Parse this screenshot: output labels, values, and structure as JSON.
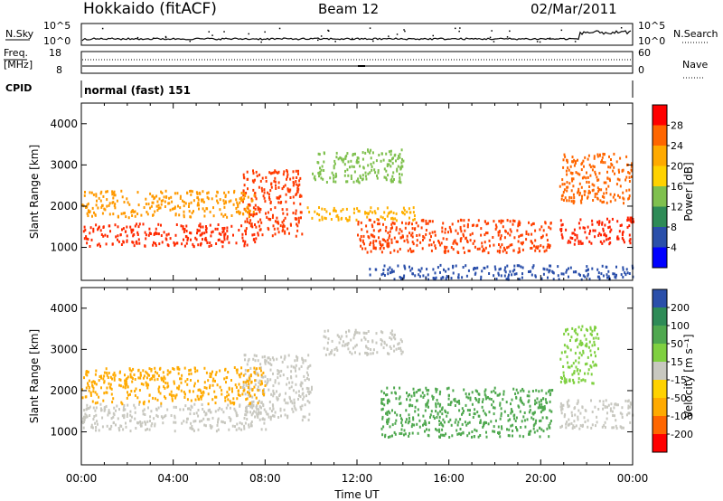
{
  "header": {
    "station": "Hokkaido (fitACF)",
    "beam": "Beam 12",
    "date": "02/Mar/2011"
  },
  "noise_panel": {
    "left_label": "N.Sky",
    "right_label": "N.Search",
    "ticks_left": [
      "10^5",
      "10^0"
    ],
    "ticks_right": [
      "10^5",
      "10^0"
    ]
  },
  "freq_panel": {
    "left_label_line1": "Freq.",
    "left_label_line2": "[MHz]",
    "ticks_left": [
      "18",
      "8"
    ],
    "ticks_right": [
      "60",
      "0"
    ],
    "right_label": "Nave"
  },
  "cpid_panel": {
    "left_label": "CPID",
    "mode_text": "normal (fast) 151"
  },
  "chart_data": [
    {
      "type": "heatmap",
      "title": "",
      "xlabel": "",
      "ylabel": "Slant Range [km]",
      "xlim": [
        0,
        24
      ],
      "ylim": [
        200,
        4500
      ],
      "x_ticks": [
        "00:00",
        "04:00",
        "08:00",
        "12:00",
        "16:00",
        "20:00",
        "00:00"
      ],
      "y_ticks": [
        1000,
        2000,
        3000,
        4000
      ],
      "colorbar": {
        "label": "Power [dB]",
        "ticks": [
          "28",
          "24",
          "20",
          "16",
          "12",
          "8",
          "4"
        ],
        "colors": [
          "#ff0000",
          "#ff6600",
          "#ffaa00",
          "#ffd200",
          "#7fc04e",
          "#2e8b57",
          "#2a4faa",
          "#0000ff"
        ]
      },
      "scatter_bands": [
        {
          "t0": 0.0,
          "t1": 7.7,
          "r0": 1050,
          "r1": 1600,
          "color": "#ff2a00"
        },
        {
          "t0": 7.0,
          "t1": 9.6,
          "r0": 1300,
          "r1": 2900,
          "color": "#ff3a00"
        },
        {
          "t0": 0.0,
          "t1": 7.5,
          "r0": 1750,
          "r1": 2400,
          "color": "#ff9900"
        },
        {
          "t0": 9.8,
          "t1": 14.5,
          "r0": 1650,
          "r1": 2000,
          "color": "#ffb000"
        },
        {
          "t0": 12.0,
          "t1": 20.5,
          "r0": 900,
          "r1": 1700,
          "color": "#ff4000"
        },
        {
          "t0": 10.0,
          "t1": 14.0,
          "r0": 2600,
          "r1": 3400,
          "color": "#7fc04e"
        },
        {
          "t0": 20.8,
          "t1": 24.0,
          "r0": 1100,
          "r1": 1750,
          "color": "#ff2200"
        },
        {
          "t0": 20.8,
          "t1": 24.0,
          "r0": 2100,
          "r1": 3300,
          "color": "#ff6600"
        },
        {
          "t0": 12.5,
          "t1": 24.0,
          "r0": 250,
          "r1": 600,
          "color": "#2a4faa"
        }
      ]
    },
    {
      "type": "heatmap",
      "title": "",
      "xlabel": "Time UT",
      "ylabel": "Slant Range [km]",
      "xlim": [
        0,
        24
      ],
      "ylim": [
        200,
        4500
      ],
      "x_ticks": [
        "00:00",
        "04:00",
        "08:00",
        "12:00",
        "16:00",
        "20:00",
        "00:00"
      ],
      "y_ticks": [
        1000,
        2000,
        3000,
        4000
      ],
      "colorbar": {
        "label": "Velocity [m s⁻¹]",
        "ticks": [
          "200",
          "100",
          "50",
          "15",
          "-15",
          "-50",
          "-100",
          "-200"
        ],
        "colors": [
          "#2a4faa",
          "#2e8b57",
          "#4fa84f",
          "#7fd040",
          "#c8c8c0",
          "#ffd200",
          "#ffaa00",
          "#ff6600",
          "#ff0000"
        ]
      },
      "scatter_bands": [
        {
          "t0": 0.0,
          "t1": 8.0,
          "r0": 1050,
          "r1": 1700,
          "color": "#c8c8c0"
        },
        {
          "t0": 7.0,
          "t1": 10.0,
          "r0": 1300,
          "r1": 2900,
          "color": "#c8c8c0"
        },
        {
          "t0": 10.5,
          "t1": 14.0,
          "r0": 2900,
          "r1": 3500,
          "color": "#c8c8c0"
        },
        {
          "t0": 13.0,
          "t1": 20.5,
          "r0": 900,
          "r1": 2100,
          "color": "#4fa84f"
        },
        {
          "t0": 20.8,
          "t1": 24.0,
          "r0": 1100,
          "r1": 1800,
          "color": "#c8c8c0"
        },
        {
          "t0": 20.8,
          "t1": 22.5,
          "r0": 2200,
          "r1": 3600,
          "color": "#7fd040"
        },
        {
          "t0": 0.0,
          "t1": 8.0,
          "r0": 1700,
          "r1": 2600,
          "color": "#ffaa00"
        }
      ]
    }
  ]
}
